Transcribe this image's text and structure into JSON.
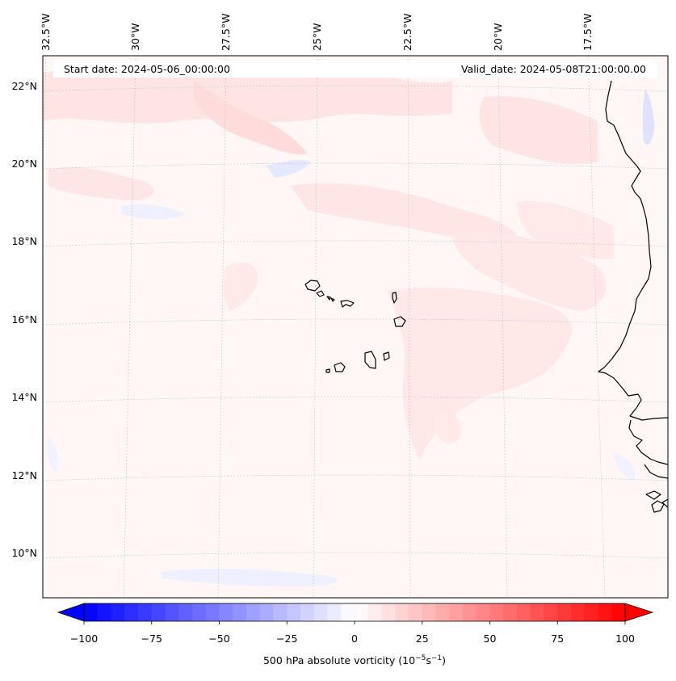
{
  "map": {
    "header": {
      "start_date": "Start date: 2024-05-06_00:00:00",
      "valid_date": "Valid_date: 2024-05-08T21:00:00.00"
    },
    "lon_labels": [
      "32.5°W",
      "30°W",
      "27.5°W",
      "25°W",
      "22.5°W",
      "20°W",
      "17.5°W"
    ],
    "lat_labels": [
      "22°N",
      "20°N",
      "18°N",
      "16°N",
      "14°N",
      "12°N",
      "10°N"
    ],
    "extent": {
      "lon": [
        -32.7,
        -16.5
      ],
      "lat": [
        8.9,
        22.7
      ]
    },
    "field": "500 hPa absolute vorticity",
    "units_html": "(10<tspan baseline-shift=\"super\" font-size=\"9\">−5</tspan>s<tspan baseline-shift=\"super\" font-size=\"9\">−1</tspan>)",
    "colorbar": {
      "cmap": "bwr",
      "min": -100,
      "max": 100,
      "step": 5,
      "extend": "both",
      "ticks": [
        "−100",
        "−75",
        "−50",
        "−25",
        "0",
        "25",
        "50",
        "75",
        "100"
      ],
      "label": "500 hPa absolute vorticity (10−5s−1)"
    },
    "colors": {
      "background_field": "#fff6f6",
      "positive_light": "#ffe3e3",
      "negative_light": "#eef0ff",
      "coast": "#000000",
      "grid": "#b0b0b0"
    }
  }
}
